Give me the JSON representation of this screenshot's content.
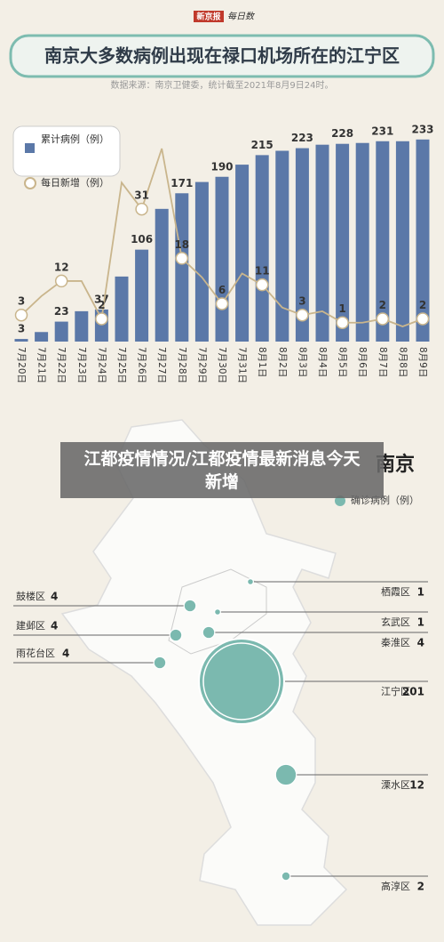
{
  "page": {
    "logo": {
      "masthead": "新京报",
      "brand": "每日数"
    },
    "overlay_title": "江都疫情情况/江都疫情最新消息今天新增"
  },
  "chart_data": [
    {
      "type": "bar",
      "title": "南京大多数病例出现在禄口机场所在的江宁区",
      "subtitle": "数据来源：南京卫健委，统计截至2021年8月9日24时。",
      "categories": [
        "7月20日",
        "7月21日",
        "7月22日",
        "7月23日",
        "7月24日",
        "7月25日",
        "7月26日",
        "7月27日",
        "7月28日",
        "7月29日",
        "7月30日",
        "7月31日",
        "8月1日",
        "8月2日",
        "8月3日",
        "8月4日",
        "8月5日",
        "8月6日",
        "8月7日",
        "8月8日",
        "8月9日"
      ],
      "series": [
        {
          "name": "累计病例（例）",
          "color": "#5b78a8",
          "values": [
            3,
            11,
            23,
            35,
            37,
            75,
            106,
            153,
            171,
            184,
            190,
            204,
            215,
            220,
            223,
            227,
            228,
            229,
            231,
            231,
            233
          ],
          "value_labels": [
            "3",
            null,
            "23",
            null,
            "37",
            null,
            "106",
            null,
            "171",
            null,
            "190",
            null,
            "215",
            null,
            "223",
            null,
            "228",
            null,
            "231",
            null,
            "233"
          ]
        },
        {
          "name": "每日新增（例）",
          "type": "line",
          "axis": "y2",
          "color": "#c9b58c",
          "values": [
            3,
            8,
            12,
            12,
            2,
            38,
            31,
            47,
            18,
            13,
            6,
            14,
            11,
            5,
            3,
            4,
            1,
            1,
            2,
            0,
            2
          ],
          "value_labels": [
            "3",
            null,
            "12",
            null,
            "2",
            null,
            "31",
            null,
            "18",
            null,
            "6",
            null,
            "11",
            null,
            "3",
            null,
            "1",
            null,
            "2",
            null,
            "2"
          ]
        }
      ],
      "ylim": [
        0,
        240
      ],
      "y2lim": [
        -4,
        51
      ]
    },
    {
      "type": "bubble-map",
      "title": "南京",
      "legend": "确诊病例（例）",
      "color": "#7bb9af",
      "categories": [
        "栖霞区",
        "玄武区",
        "秦淮区",
        "江宁区",
        "溧水区",
        "高淳区",
        "鼓楼区",
        "建邺区",
        "雨花台区"
      ],
      "values": [
        1,
        1,
        4,
        201,
        12,
        2,
        4,
        4,
        4
      ]
    }
  ]
}
